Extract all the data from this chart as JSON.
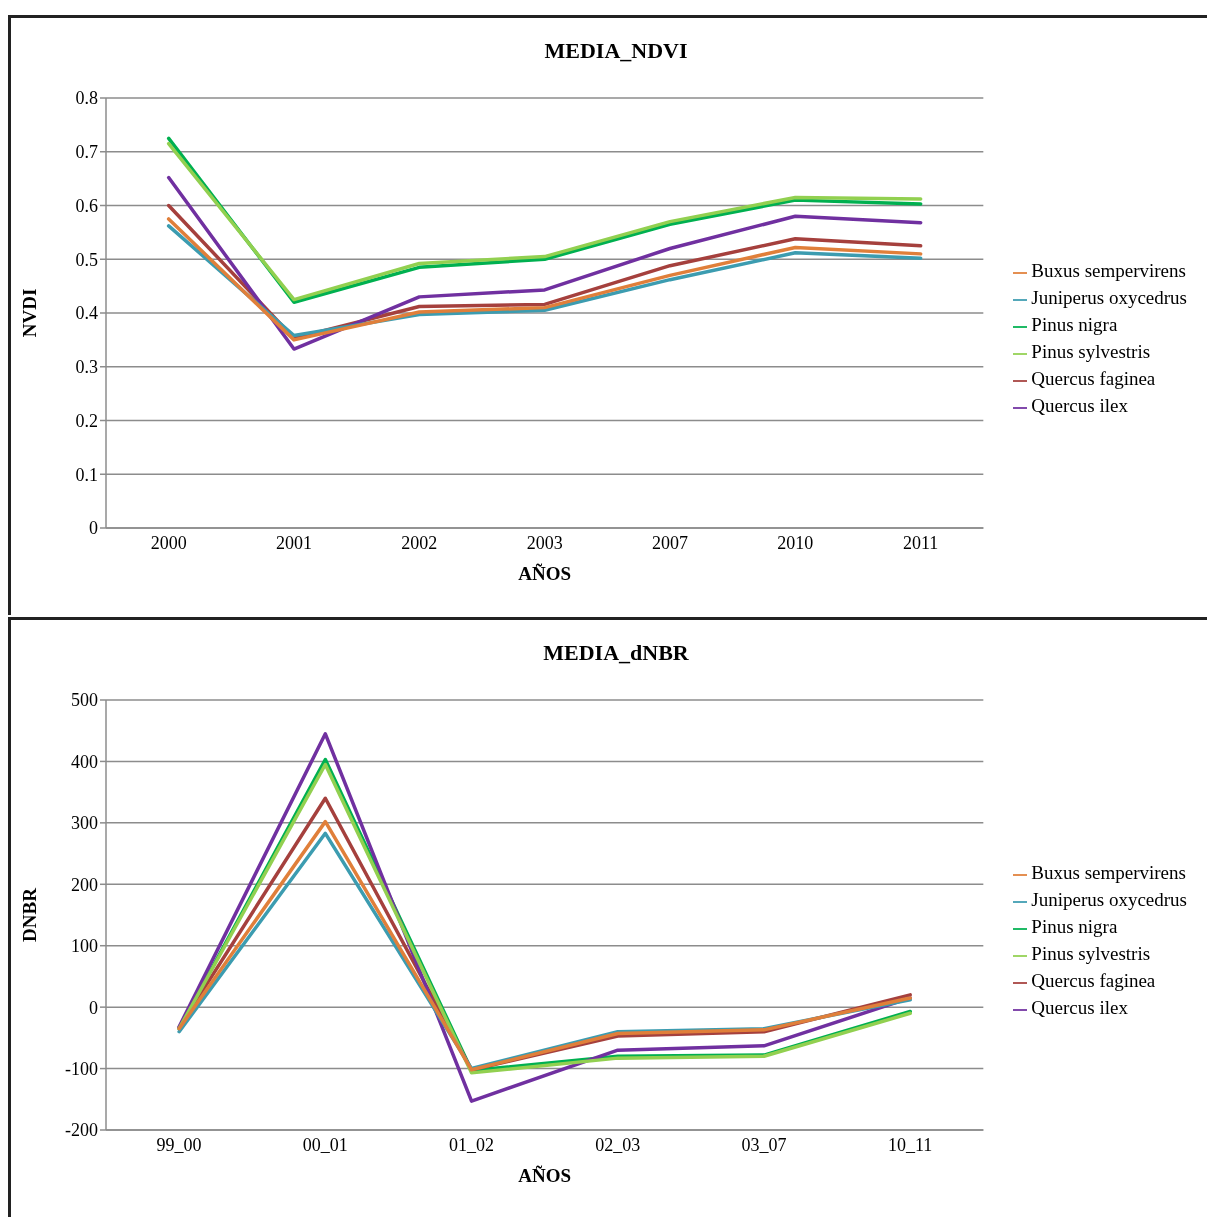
{
  "chart_data": [
    {
      "type": "line",
      "title": "MEDIA_NDVI",
      "xlabel": "AÑOS",
      "ylabel": "NVDI",
      "categories": [
        "2000",
        "2001",
        "2002",
        "2003",
        "2007",
        "2010",
        "2011"
      ],
      "ylim": [
        0,
        0.8
      ],
      "yticks": [
        0,
        0.1,
        0.2,
        0.3,
        0.4,
        0.5,
        0.6,
        0.7,
        0.8
      ],
      "grid": "y",
      "legend": "right",
      "marker": "none",
      "line_style": "solid",
      "series": [
        {
          "name": "Pinus nigra",
          "color": "#00b050",
          "values": [
            0.725,
            0.42,
            0.485,
            0.5,
            0.565,
            0.61,
            0.603
          ]
        },
        {
          "name": "Quercus faginea",
          "color": "#a5403d",
          "values": [
            0.6,
            0.353,
            0.412,
            0.416,
            0.488,
            0.538,
            0.525
          ]
        },
        {
          "name": "Quercus ilex",
          "color": "#7030a0",
          "values": [
            0.652,
            0.333,
            0.43,
            0.443,
            0.52,
            0.58,
            0.568
          ]
        },
        {
          "name": "Pinus sylvestris",
          "color": "#92d050",
          "values": [
            0.715,
            0.425,
            0.492,
            0.505,
            0.57,
            0.615,
            0.612
          ]
        },
        {
          "name": "Juniperus oxycedrus",
          "color": "#3c9cb0",
          "values": [
            0.562,
            0.358,
            0.397,
            0.405,
            0.462,
            0.512,
            0.502
          ]
        },
        {
          "name": "Buxus sempervirens",
          "color": "#e07f3a",
          "values": [
            0.575,
            0.35,
            0.402,
            0.41,
            0.47,
            0.522,
            0.51
          ]
        }
      ]
    },
    {
      "type": "line",
      "title": "MEDIA_dNBR",
      "xlabel": "AÑOS",
      "ylabel": "DNBR",
      "categories": [
        "99_00",
        "00_01",
        "01_02",
        "02_03",
        "03_07",
        "10_11"
      ],
      "ylim": [
        -200,
        500
      ],
      "yticks": [
        -200,
        -100,
        0,
        100,
        200,
        300,
        400,
        500
      ],
      "grid": "y",
      "legend": "right",
      "marker": "none",
      "line_style": "solid",
      "series": [
        {
          "name": "Pinus nigra",
          "color": "#00b050",
          "values": [
            -35,
            403,
            -103,
            -80,
            -78,
            -7
          ]
        },
        {
          "name": "Quercus faginea",
          "color": "#a5403d",
          "values": [
            -33,
            340,
            -102,
            -47,
            -40,
            20
          ]
        },
        {
          "name": "Quercus ilex",
          "color": "#7030a0",
          "values": [
            -32,
            445,
            -153,
            -70,
            -63,
            15
          ]
        },
        {
          "name": "Pinus sylvestris",
          "color": "#92d050",
          "values": [
            -35,
            395,
            -107,
            -83,
            -80,
            -10
          ]
        },
        {
          "name": "Juniperus oxycedrus",
          "color": "#3c9cb0",
          "values": [
            -40,
            283,
            -100,
            -40,
            -35,
            12
          ]
        },
        {
          "name": "Buxus sempervirens",
          "color": "#e07f3a",
          "values": [
            -35,
            302,
            -102,
            -43,
            -37,
            15
          ]
        }
      ]
    }
  ]
}
